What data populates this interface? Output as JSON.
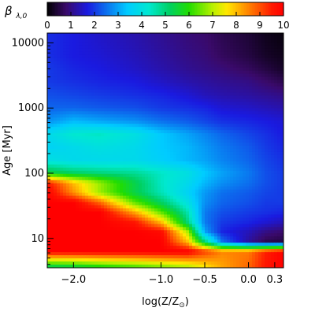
{
  "chart_data": {
    "type": "heatmap",
    "title": "",
    "colorbar": {
      "label_base": "β",
      "label_sub": "λ,0",
      "min": 0,
      "max": 10,
      "ticks": [
        "0",
        "1",
        "2",
        "3",
        "4",
        "5",
        "6",
        "7",
        "8",
        "9",
        "10"
      ],
      "stops": [
        [
          0,
          "#000000"
        ],
        [
          0.8,
          "#3a0a6a"
        ],
        [
          1.7,
          "#1a1ae0"
        ],
        [
          2.6,
          "#0a7af0"
        ],
        [
          3.4,
          "#00ccff"
        ],
        [
          4.3,
          "#00e8d0"
        ],
        [
          5.2,
          "#00d060"
        ],
        [
          6.0,
          "#22dd00"
        ],
        [
          7.0,
          "#b8f000"
        ],
        [
          7.6,
          "#ffe800"
        ],
        [
          8.6,
          "#ff7a00"
        ],
        [
          9.5,
          "#ff1a00"
        ],
        [
          10,
          "#ff0000"
        ]
      ]
    },
    "xlabel": "log(Z/Z",
    "xlabel_suffix": ")",
    "ylabel": "Age [Myr]",
    "xlim": [
      -2.3,
      0.4
    ],
    "ylim_log10": [
      0.55,
      4.15
    ],
    "x_ticks": [
      {
        "value": -2.0,
        "label": "−2.0"
      },
      {
        "value": -1.0,
        "label": "−1.0"
      },
      {
        "value": -0.5,
        "label": "−0.5"
      },
      {
        "value": 0.0,
        "label": "0.0"
      },
      {
        "value": 0.3,
        "label": "0.3"
      }
    ],
    "y_ticks": [
      {
        "value": 10,
        "label": "10"
      },
      {
        "value": 100,
        "label": "100"
      },
      {
        "value": 1000,
        "label": "1000"
      },
      {
        "value": 10000,
        "label": "10000"
      }
    ],
    "metallicity_columns": [
      -2.3,
      -2.0,
      -1.7,
      -1.3,
      -1.0,
      -0.7,
      -0.5,
      -0.3,
      0.0,
      0.2,
      0.4
    ],
    "age_rows_log10": [
      0.55,
      0.8,
      0.95,
      1.1,
      1.25,
      1.4,
      1.55,
      1.7,
      1.85,
      2.0,
      2.2,
      2.4,
      2.6,
      2.8,
      3.0,
      3.2,
      3.4,
      3.6,
      3.8,
      4.15
    ],
    "beta_grid": [
      [
        5.0,
        5.2,
        5.6,
        6.0,
        6.4,
        6.8,
        7.5,
        8.2,
        8.8,
        9.6,
        10.0
      ],
      [
        10.0,
        10.0,
        10.0,
        10.0,
        10.0,
        10.0,
        9.2,
        8.5,
        8.6,
        9.5,
        10.0
      ],
      [
        10.0,
        10.0,
        10.0,
        10.0,
        10.0,
        8.0,
        5.0,
        2.5,
        1.2,
        0.6,
        0.5
      ],
      [
        10.0,
        10.0,
        10.0,
        10.0,
        9.8,
        7.0,
        3.0,
        1.8,
        1.4,
        1.0,
        0.8
      ],
      [
        10.0,
        10.0,
        10.0,
        9.6,
        8.0,
        5.0,
        2.6,
        2.0,
        1.8,
        1.6,
        1.4
      ],
      [
        10.0,
        10.0,
        10.0,
        8.2,
        6.4,
        4.6,
        2.6,
        2.2,
        2.0,
        1.9,
        1.8
      ],
      [
        10.0,
        10.0,
        8.8,
        6.4,
        5.2,
        4.0,
        2.8,
        2.4,
        2.2,
        2.0,
        2.0
      ],
      [
        10.0,
        8.4,
        6.8,
        5.4,
        4.5,
        3.6,
        2.9,
        2.5,
        2.3,
        2.1,
        2.0
      ],
      [
        9.6,
        8.0,
        6.8,
        5.4,
        4.4,
        3.8,
        3.2,
        2.8,
        2.5,
        2.2,
        2.0
      ],
      [
        5.6,
        5.2,
        5.0,
        4.8,
        4.4,
        4.0,
        3.4,
        3.0,
        2.6,
        2.2,
        2.0
      ],
      [
        4.0,
        3.8,
        3.8,
        3.8,
        3.5,
        3.2,
        3.0,
        2.7,
        2.4,
        2.1,
        1.9
      ],
      [
        3.6,
        3.8,
        4.0,
        3.8,
        3.4,
        3.2,
        2.9,
        2.6,
        2.3,
        2.0,
        1.8
      ],
      [
        3.8,
        4.3,
        4.4,
        4.0,
        3.4,
        3.0,
        2.7,
        2.4,
        2.1,
        1.9,
        1.7
      ],
      [
        2.8,
        3.2,
        3.0,
        2.8,
        2.5,
        2.3,
        2.1,
        1.9,
        1.8,
        1.7,
        1.6
      ],
      [
        2.4,
        2.4,
        2.3,
        2.2,
        2.0,
        1.9,
        1.8,
        1.6,
        1.5,
        1.4,
        1.3
      ],
      [
        2.2,
        2.1,
        2.0,
        1.9,
        1.8,
        1.6,
        1.4,
        1.3,
        1.2,
        1.1,
        1.0
      ],
      [
        2.0,
        1.9,
        1.8,
        1.7,
        1.5,
        1.3,
        1.2,
        1.1,
        1.0,
        0.8,
        0.6
      ],
      [
        2.0,
        1.8,
        1.7,
        1.5,
        1.3,
        1.1,
        1.0,
        0.9,
        0.7,
        0.5,
        0.3
      ],
      [
        1.9,
        1.7,
        1.6,
        1.4,
        1.2,
        1.0,
        0.9,
        0.7,
        0.5,
        0.3,
        0.2
      ],
      [
        1.9,
        1.7,
        1.5,
        1.3,
        1.1,
        0.9,
        0.8,
        0.6,
        0.4,
        0.2,
        0.1
      ]
    ],
    "grid": false,
    "legend": "colorbar-top"
  }
}
